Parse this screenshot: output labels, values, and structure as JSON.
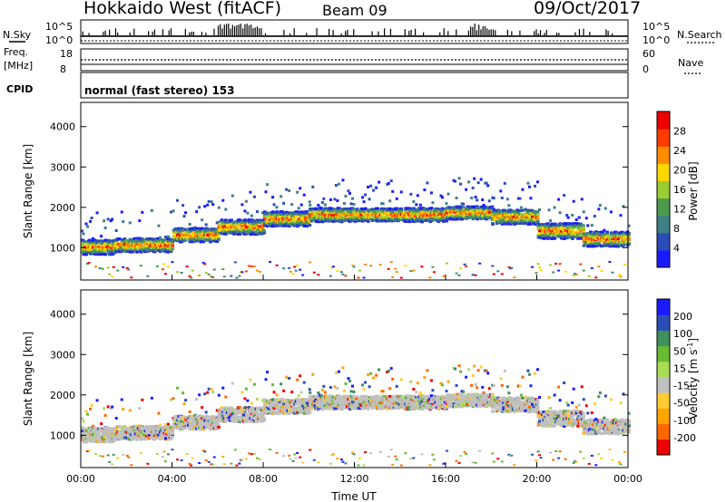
{
  "header": {
    "title": "Hokkaido West (fitACF)",
    "beam": "Beam 09",
    "date": "09/Oct/2017"
  },
  "panels": {
    "nsky_label": "N.Sky",
    "nsky_ticks": [
      "10^5",
      "10^0"
    ],
    "nsearch_label": "N.Search",
    "nsearch_ticks": [
      "10^5",
      "10^0"
    ],
    "freq_label_1": "Freq.",
    "freq_label_2": "[MHz]",
    "freq_ticks": [
      "18",
      "8"
    ],
    "nave_label": "Nave",
    "nave_ticks": [
      "60",
      "0"
    ],
    "cpid_label": "CPID",
    "cpid_value": "normal (fast stereo) 153"
  },
  "chart_data": [
    {
      "type": "heatmap",
      "name": "power",
      "ylabel": "Slant Range [km]",
      "xlabel": "",
      "x_ticks": [
        "00:00",
        "04:00",
        "08:00",
        "12:00",
        "16:00",
        "20:00",
        "00:00"
      ],
      "xlim_hours": [
        0,
        24
      ],
      "ylim": [
        200,
        4600
      ],
      "y_ticks": [
        1000,
        2000,
        3000,
        4000
      ],
      "colorbar": {
        "label": "Power [dB]",
        "ticks": [
          4,
          8,
          12,
          16,
          20,
          24,
          28
        ],
        "range": [
          0,
          32
        ],
        "colors": [
          "#1a1aff",
          "#2b4db8",
          "#3f7f86",
          "#4d9a4d",
          "#9acd32",
          "#ffd700",
          "#ff8c00",
          "#ff3b00",
          "#ee0000"
        ]
      },
      "scatter_bands": [
        {
          "t0": 0,
          "t1": 1.5,
          "center": 1000,
          "half_width": 180
        },
        {
          "t0": 1.5,
          "t1": 4,
          "center": 1050,
          "half_width": 170
        },
        {
          "t0": 4,
          "t1": 6,
          "center": 1300,
          "half_width": 170
        },
        {
          "t0": 6,
          "t1": 8,
          "center": 1500,
          "half_width": 180
        },
        {
          "t0": 8,
          "t1": 10,
          "center": 1700,
          "half_width": 180
        },
        {
          "t0": 10,
          "t1": 12,
          "center": 1800,
          "half_width": 170
        },
        {
          "t0": 12,
          "t1": 14,
          "center": 1800,
          "half_width": 160
        },
        {
          "t0": 14,
          "t1": 16,
          "center": 1800,
          "half_width": 170
        },
        {
          "t0": 16,
          "t1": 18,
          "center": 1850,
          "half_width": 160
        },
        {
          "t0": 18,
          "t1": 20,
          "center": 1750,
          "half_width": 180
        },
        {
          "t0": 20,
          "t1": 22,
          "center": 1400,
          "half_width": 190
        },
        {
          "t0": 22,
          "t1": 24,
          "center": 1200,
          "half_width": 180
        }
      ]
    },
    {
      "type": "heatmap",
      "name": "velocity",
      "ylabel": "Slant Range [km]",
      "xlabel": "Time UT",
      "x_ticks": [
        "00:00",
        "04:00",
        "08:00",
        "12:00",
        "16:00",
        "20:00",
        "00:00"
      ],
      "xlim_hours": [
        0,
        24
      ],
      "ylim": [
        200,
        4600
      ],
      "y_ticks": [
        1000,
        2000,
        3000,
        4000
      ],
      "colorbar": {
        "label": "Velocity [m s^-1]",
        "ticks": [
          200,
          100,
          50,
          15,
          -15,
          -50,
          -100,
          -200
        ],
        "colors": [
          "#1a1aff",
          "#2b4db8",
          "#3f8f5f",
          "#66bb33",
          "#aadd55",
          "#c0c0c0",
          "#ffcc33",
          "#ffa500",
          "#ff6600",
          "#ee0000"
        ]
      }
    }
  ]
}
